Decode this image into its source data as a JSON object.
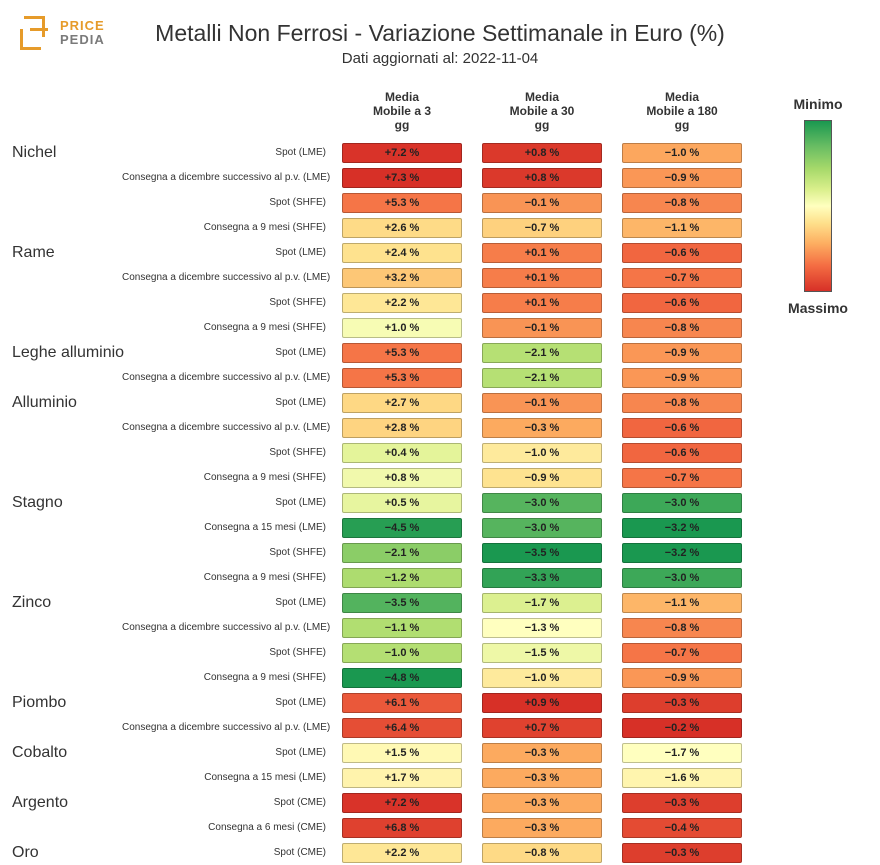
{
  "logo": {
    "line1": "PRICE",
    "line2": "PEDIA"
  },
  "title": "Metalli Non Ferrosi - Variazione Settimanale in Euro (%)",
  "subtitle": "Dati aggiornati al: 2022-11-04",
  "columns": [
    "Media\nMobile a 3\ngg",
    "Media\nMobile a 30\ngg",
    "Media\nMobile a 180\ngg"
  ],
  "legend": {
    "top": "Minimo",
    "bottom": "Massimo"
  },
  "style": {
    "background_color": "#ffffff",
    "text_color": "#333333",
    "title_fontsize": 23,
    "subtitle_fontsize": 15,
    "category_fontsize": 16,
    "row_label_fontsize": 10,
    "col_header_fontsize": 12,
    "cell_fontsize": 11,
    "pill_border_color": "rgba(0,0,0,0.25)",
    "logo_color": "#e69b2a",
    "color_scale": {
      "type": "diverging_reversed_RdYlGn",
      "domain_min": -4.8,
      "domain_max": 7.3,
      "stops": [
        {
          "t": 0.0,
          "hex": "#1a9850"
        },
        {
          "t": 0.15,
          "hex": "#69bd63"
        },
        {
          "t": 0.28,
          "hex": "#a6d96a"
        },
        {
          "t": 0.4,
          "hex": "#d9ef8b"
        },
        {
          "t": 0.5,
          "hex": "#ffffbf"
        },
        {
          "t": 0.6,
          "hex": "#fee08b"
        },
        {
          "t": 0.72,
          "hex": "#fdae61"
        },
        {
          "t": 0.85,
          "hex": "#f46d43"
        },
        {
          "t": 1.0,
          "hex": "#d73027"
        }
      ]
    }
  },
  "rows": [
    {
      "category": "Nichel",
      "label": "Spot (LME)",
      "v": [
        7.2,
        0.8,
        -1.0
      ]
    },
    {
      "category": "",
      "label": "Consegna a dicembre successivo al p.v. (LME)",
      "v": [
        7.3,
        0.8,
        -0.9
      ]
    },
    {
      "category": "",
      "label": "Spot (SHFE)",
      "v": [
        5.3,
        -0.1,
        -0.8
      ]
    },
    {
      "category": "",
      "label": "Consegna a 9 mesi (SHFE)",
      "v": [
        2.6,
        -0.7,
        -1.1
      ]
    },
    {
      "category": "Rame",
      "label": "Spot (LME)",
      "v": [
        2.4,
        0.1,
        -0.6
      ]
    },
    {
      "category": "",
      "label": "Consegna a dicembre successivo al p.v. (LME)",
      "v": [
        3.2,
        0.1,
        -0.7
      ]
    },
    {
      "category": "",
      "label": "Spot (SHFE)",
      "v": [
        2.2,
        0.1,
        -0.6
      ]
    },
    {
      "category": "",
      "label": "Consegna a 9 mesi (SHFE)",
      "v": [
        1.0,
        -0.1,
        -0.8
      ]
    },
    {
      "category": "Leghe alluminio",
      "label": "Spot (LME)",
      "v": [
        5.3,
        -2.1,
        -0.9
      ]
    },
    {
      "category": "",
      "label": "Consegna a dicembre successivo al p.v. (LME)",
      "v": [
        5.3,
        -2.1,
        -0.9
      ]
    },
    {
      "category": "Alluminio",
      "label": "Spot (LME)",
      "v": [
        2.7,
        -0.1,
        -0.8
      ]
    },
    {
      "category": "",
      "label": "Consegna a dicembre successivo al p.v. (LME)",
      "v": [
        2.8,
        -0.3,
        -0.6
      ]
    },
    {
      "category": "",
      "label": "Spot (SHFE)",
      "v": [
        0.4,
        -1.0,
        -0.6
      ]
    },
    {
      "category": "",
      "label": "Consegna a 9 mesi (SHFE)",
      "v": [
        0.8,
        -0.9,
        -0.7
      ]
    },
    {
      "category": "Stagno",
      "label": "Spot (LME)",
      "v": [
        0.5,
        -3.0,
        -3.0
      ]
    },
    {
      "category": "",
      "label": "Consegna a 15 mesi (LME)",
      "v": [
        -4.5,
        -3.0,
        -3.2
      ]
    },
    {
      "category": "",
      "label": "Spot (SHFE)",
      "v": [
        -2.1,
        -3.5,
        -3.2
      ]
    },
    {
      "category": "",
      "label": "Consegna a 9 mesi (SHFE)",
      "v": [
        -1.2,
        -3.3,
        -3.0
      ]
    },
    {
      "category": "Zinco",
      "label": "Spot (LME)",
      "v": [
        -3.5,
        -1.7,
        -1.1
      ]
    },
    {
      "category": "",
      "label": "Consegna a dicembre successivo al p.v. (LME)",
      "v": [
        -1.1,
        -1.3,
        -0.8
      ]
    },
    {
      "category": "",
      "label": "Spot (SHFE)",
      "v": [
        -1.0,
        -1.5,
        -0.7
      ]
    },
    {
      "category": "",
      "label": "Consegna a 9 mesi (SHFE)",
      "v": [
        -4.8,
        -1.0,
        -0.9
      ]
    },
    {
      "category": "Piombo",
      "label": "Spot (LME)",
      "v": [
        6.1,
        0.9,
        -0.3
      ]
    },
    {
      "category": "",
      "label": "Consegna a dicembre successivo al p.v. (LME)",
      "v": [
        6.4,
        0.7,
        -0.2
      ]
    },
    {
      "category": "Cobalto",
      "label": "Spot (LME)",
      "v": [
        1.5,
        -0.3,
        -1.7
      ]
    },
    {
      "category": "",
      "label": "Consegna a 15 mesi (LME)",
      "v": [
        1.7,
        -0.3,
        -1.6
      ]
    },
    {
      "category": "Argento",
      "label": "Spot (CME)",
      "v": [
        7.2,
        -0.3,
        -0.3
      ]
    },
    {
      "category": "",
      "label": "Consegna a 6 mesi (CME)",
      "v": [
        6.8,
        -0.3,
        -0.4
      ]
    },
    {
      "category": "Oro",
      "label": "Spot (CME)",
      "v": [
        2.2,
        -0.8,
        -0.3
      ]
    }
  ]
}
